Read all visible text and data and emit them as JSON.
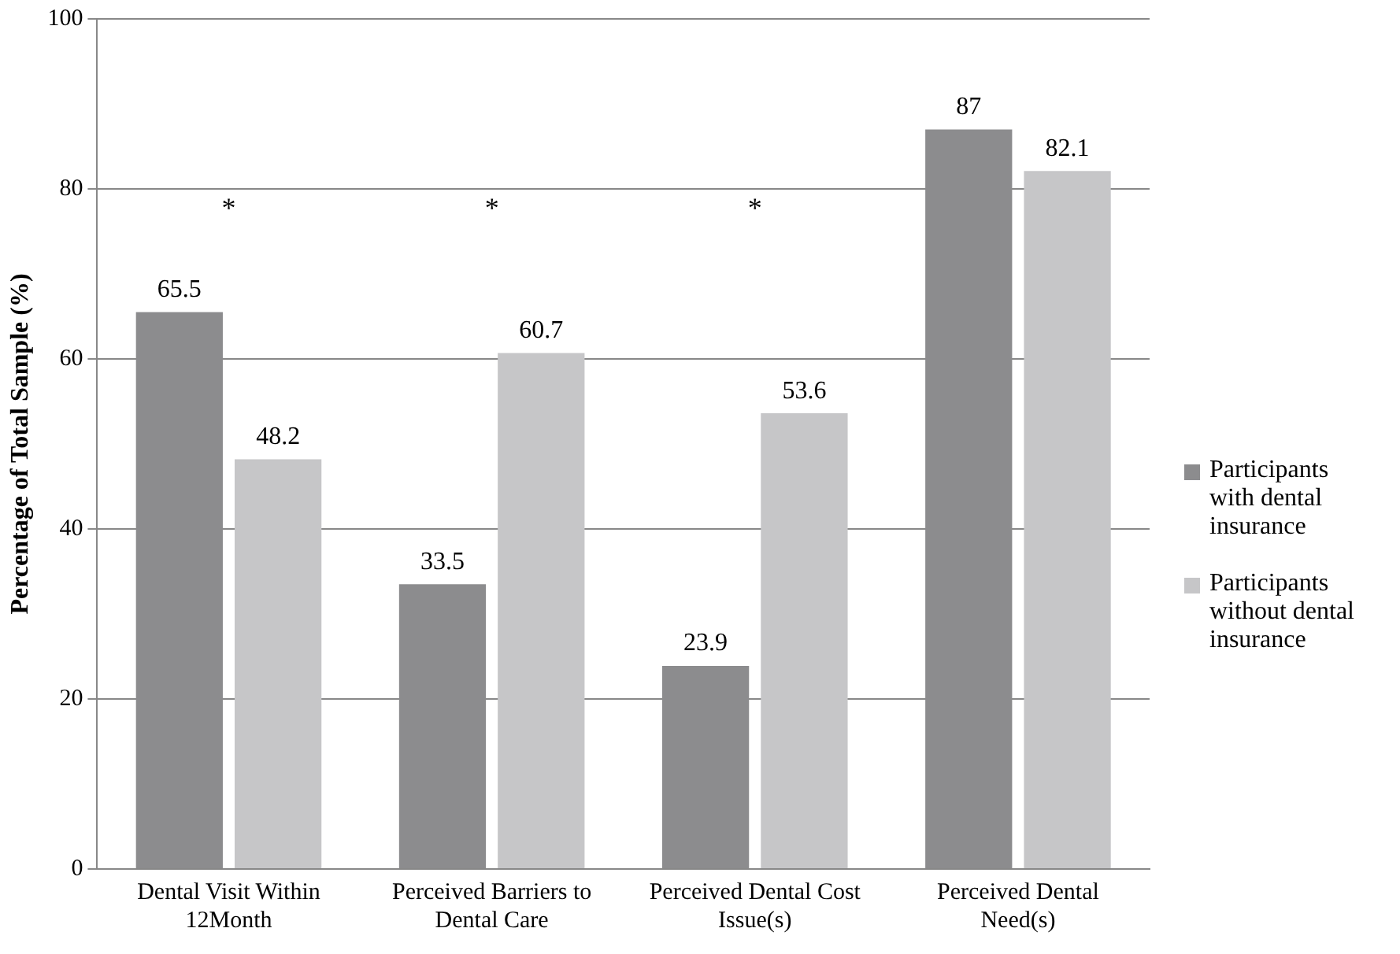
{
  "chart_data": {
    "type": "bar",
    "ylabel": "Percentage of Total Sample (%)",
    "categories": [
      "Dental Visit Within 12Month",
      "Perceived Barriers to Dental Care",
      "Perceived Dental Cost Issue(s)",
      "Perceived Dental Need(s)"
    ],
    "series": [
      {
        "name": "Participants with dental insurance",
        "color": "#8c8c8e",
        "values": [
          65.5,
          33.5,
          23.9,
          87
        ]
      },
      {
        "name": "Participants without dental insurance",
        "color": "#c6c6c8",
        "values": [
          48.2,
          60.7,
          53.6,
          82.1
        ]
      }
    ],
    "ylim": [
      0,
      100
    ],
    "yticks": [
      0,
      20,
      40,
      60,
      80,
      100
    ],
    "grid": "y",
    "legend": "right",
    "data_labels": true,
    "annotations": [
      "*",
      "*",
      "*"
    ]
  }
}
